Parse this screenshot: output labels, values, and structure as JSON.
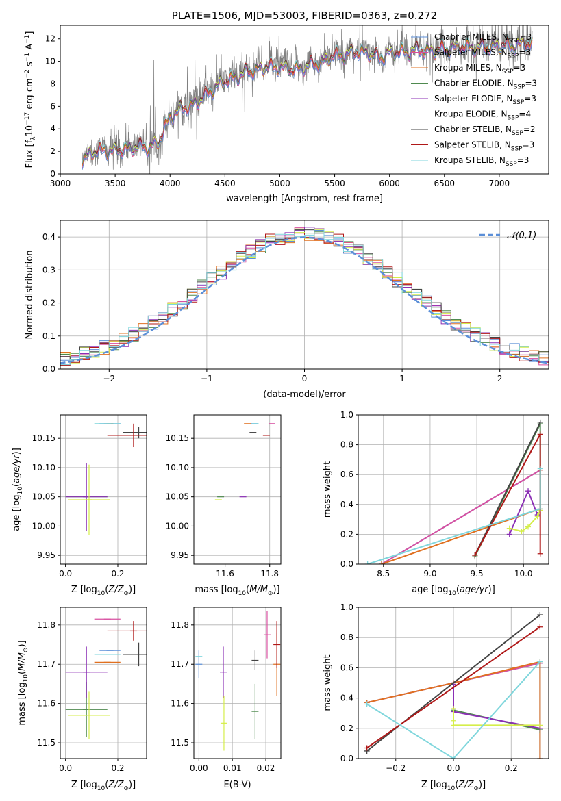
{
  "palette": {
    "Chabrier MILES": "#5b8fd8",
    "Salpeter MILES": "#d84fa0",
    "Kroupa MILES": "#e07020",
    "Chabrier ELODIE": "#4f8a4f",
    "Salpeter ELODIE": "#8b2fb5",
    "Kroupa ELODIE": "#d5ee4a",
    "Chabrier STELIB": "#444444",
    "Salpeter STELIB": "#b01818",
    "Kroupa STELIB": "#7fd6dc",
    "data": "#7f7f7f",
    "gaussian": "#5b8fd8"
  },
  "chart_data": [
    {
      "id": "spectrum",
      "type": "line",
      "title": "PLATE=1506, MJD=53003, FIBERID=0363, z=0.272",
      "xlabel": "wavelength [Angstrom, rest frame]",
      "ylabel": "Flux [f_λ 10^-17 erg cm^-2 s^-1 A^-1]",
      "xlim": [
        3000,
        7450
      ],
      "ylim": [
        0,
        13.2
      ],
      "xticks": [
        3000,
        3500,
        4000,
        4500,
        5000,
        5500,
        6000,
        6500,
        7000
      ],
      "yticks": [
        0,
        2,
        4,
        6,
        8,
        10,
        12
      ],
      "grid": false,
      "legend_position": "top-right",
      "legend": [
        "Chabrier MILES, N_SSP=3",
        "Salpeter MILES, N_SSP=3",
        "Kroupa MILES, N_SSP=3",
        "Chabrier ELODIE, N_SSP=3",
        "Salpeter ELODIE, N_SSP=3",
        "Kroupa ELODIE, N_SSP=4",
        "Chabrier STELIB, N_SSP=2",
        "Salpeter STELIB, N_SSP=3",
        "Kroupa STELIB, N_SSP=3"
      ],
      "wave_range": [
        3200,
        7300
      ],
      "continuum": {
        "x": [
          3200,
          3300,
          3400,
          3500,
          3600,
          3700,
          3800,
          3900,
          4000,
          4100,
          4200,
          4300,
          4400,
          4500,
          4600,
          4700,
          4800,
          4900,
          5000,
          5100,
          5200,
          5300,
          5400,
          5500,
          5600,
          5700,
          5800,
          5900,
          6000,
          6100,
          6200,
          6300,
          6400,
          6500,
          6600,
          6700,
          6800,
          6900,
          7000,
          7100,
          7200,
          7300
        ],
        "y": [
          1.5,
          2.1,
          2.3,
          2.2,
          2.4,
          2.6,
          2.6,
          3.0,
          5.3,
          5.9,
          6.3,
          6.9,
          7.8,
          8.4,
          8.8,
          9.2,
          9.5,
          9.7,
          9.7,
          9.4,
          9.6,
          9.9,
          10.2,
          10.7,
          10.8,
          11.0,
          11.0,
          10.5,
          10.9,
          11.0,
          11.1,
          11.2,
          11.1,
          11.3,
          11.4,
          11.5,
          11.4,
          11.5,
          11.6,
          11.6,
          11.7,
          11.8
        ]
      },
      "noise": {
        "x": [
          3200,
          4000,
          5000,
          6000,
          7000,
          7300
        ],
        "sigma": [
          0.6,
          0.8,
          0.7,
          0.6,
          0.8,
          0.9
        ]
      }
    },
    {
      "id": "residuals",
      "type": "line",
      "title": "",
      "xlabel": "(data-model)/error",
      "ylabel": "Normed distribution",
      "xlim": [
        -2.5,
        2.5
      ],
      "ylim": [
        0,
        0.45
      ],
      "xticks": [
        -2,
        -1,
        0,
        1,
        2
      ],
      "yticks": [
        0.0,
        0.1,
        0.2,
        0.3,
        0.4
      ],
      "grid": true,
      "legend_position": "top-right",
      "legend": [
        "N(0,1)"
      ],
      "gaussian": {
        "mu": 0,
        "sigma": 1
      },
      "bin_width": 0.1
    },
    {
      "id": "age-vs-z",
      "type": "errorbar",
      "xlabel": "Z [log10(Z/Z⊙)]",
      "ylabel": "age  [log10(age/yr)]",
      "xlim": [
        -0.02,
        0.31
      ],
      "ylim": [
        9.935,
        10.19
      ],
      "xticks": [
        0.0,
        0.2
      ],
      "yticks": [
        9.95,
        10.0,
        10.05,
        10.1,
        10.15
      ],
      "grid": true,
      "points": [
        {
          "series": "Chabrier MILES",
          "x": 0.17,
          "y": 10.175,
          "xerr": 0.04,
          "yerr": 0.0
        },
        {
          "series": "Salpeter MILES",
          "x": 0.16,
          "y": 10.175,
          "xerr": 0.0,
          "yerr": 0.0
        },
        {
          "series": "Kroupa MILES",
          "x": 0.17,
          "y": 10.175,
          "xerr": 0.0,
          "yerr": 0.0
        },
        {
          "series": "Chabrier ELODIE",
          "x": 0.08,
          "y": 10.05,
          "xerr": 0.08,
          "yerr": 0.0
        },
        {
          "series": "Salpeter ELODIE",
          "x": 0.08,
          "y": 10.05,
          "xerr": 0.08,
          "yerr": 0.058
        },
        {
          "series": "Kroupa ELODIE",
          "x": 0.09,
          "y": 10.045,
          "xerr": 0.08,
          "yerr": 0.06
        },
        {
          "series": "Chabrier STELIB",
          "x": 0.28,
          "y": 10.16,
          "xerr": 0.06,
          "yerr": 0.01
        },
        {
          "series": "Salpeter STELIB",
          "x": 0.26,
          "y": 10.155,
          "xerr": 0.1,
          "yerr": 0.02
        },
        {
          "series": "Kroupa STELIB",
          "x": 0.16,
          "y": 10.175,
          "xerr": 0.05,
          "yerr": 0.0
        }
      ]
    },
    {
      "id": "age-vs-mass",
      "type": "errorbar",
      "xlabel": "mass [log10(M/M⊙)]",
      "ylabel": "",
      "xlim": [
        11.46,
        11.85
      ],
      "ylim": [
        9.935,
        10.19
      ],
      "xticks": [
        11.6,
        11.8
      ],
      "yticks": [
        9.95,
        10.0,
        10.05,
        10.1,
        10.15
      ],
      "grid": true,
      "points": [
        {
          "series": "Chabrier MILES",
          "x": 11.73,
          "y": 10.175,
          "xerr": 0.0,
          "yerr": 0.0
        },
        {
          "series": "Salpeter MILES",
          "x": 11.81,
          "y": 10.175,
          "xerr": 0.0,
          "yerr": 0.0
        },
        {
          "series": "Kroupa MILES",
          "x": 11.7,
          "y": 10.175,
          "xerr": 0.0,
          "yerr": 0.0
        },
        {
          "series": "Chabrier ELODIE",
          "x": 11.58,
          "y": 10.05,
          "xerr": 0.0,
          "yerr": 0.0
        },
        {
          "series": "Salpeter ELODIE",
          "x": 11.68,
          "y": 10.05,
          "xerr": 0.0,
          "yerr": 0.0
        },
        {
          "series": "Kroupa ELODIE",
          "x": 11.57,
          "y": 10.045,
          "xerr": 0.0,
          "yerr": 0.0
        },
        {
          "series": "Chabrier STELIB",
          "x": 11.725,
          "y": 10.16,
          "xerr": 0.0,
          "yerr": 0.0
        },
        {
          "series": "Salpeter STELIB",
          "x": 11.785,
          "y": 10.155,
          "xerr": 0.0,
          "yerr": 0.0
        },
        {
          "series": "Kroupa STELIB",
          "x": 11.735,
          "y": 10.175,
          "xerr": 0.0,
          "yerr": 0.0
        }
      ]
    },
    {
      "id": "weight-vs-age",
      "type": "line",
      "xlabel": "age  [log10(age/yr)]",
      "ylabel": "mass weight",
      "xlim": [
        8.23,
        10.27
      ],
      "ylim": [
        0,
        1.0
      ],
      "xticks": [
        8.5,
        9.0,
        9.5,
        10.0
      ],
      "yticks": [
        0.0,
        0.2,
        0.4,
        0.6,
        0.8,
        1.0
      ],
      "grid": true,
      "series": [
        {
          "series": "Chabrier MILES",
          "x": [
            8.48,
            10.18
          ],
          "y": [
            0.0,
            0.63
          ]
        },
        {
          "series": "Salpeter MILES",
          "x": [
            8.48,
            10.18
          ],
          "y": [
            0.0,
            0.63
          ]
        },
        {
          "series": "Kroupa MILES",
          "x": [
            8.48,
            10.18,
            10.18
          ],
          "y": [
            0.0,
            0.37,
            0.63
          ]
        },
        {
          "series": "Chabrier ELODIE",
          "x": [
            9.48,
            10.18,
            10.18
          ],
          "y": [
            0.05,
            0.94,
            0.36
          ]
        },
        {
          "series": "Salpeter ELODIE",
          "x": [
            9.85,
            10.05,
            10.15
          ],
          "y": [
            0.2,
            0.49,
            0.33
          ]
        },
        {
          "series": "Kroupa ELODIE",
          "x": [
            9.85,
            9.98,
            10.05,
            10.15,
            10.18
          ],
          "y": [
            0.24,
            0.22,
            0.25,
            0.32,
            0.36
          ]
        },
        {
          "series": "Chabrier STELIB",
          "x": [
            9.48,
            10.18
          ],
          "y": [
            0.06,
            0.95
          ]
        },
        {
          "series": "Salpeter STELIB",
          "x": [
            9.48,
            10.18,
            10.18
          ],
          "y": [
            0.06,
            0.87,
            0.07
          ]
        },
        {
          "series": "Kroupa STELIB",
          "x": [
            8.33,
            10.18,
            10.18
          ],
          "y": [
            0.0,
            0.37,
            0.64
          ]
        }
      ]
    },
    {
      "id": "mass-vs-z",
      "type": "errorbar",
      "xlabel": "Z [log10(Z/Z⊙)]",
      "ylabel": "mass [log10(M/M⊙)]",
      "xlim": [
        -0.02,
        0.31
      ],
      "ylim": [
        11.46,
        11.845
      ],
      "xticks": [
        0.0,
        0.2
      ],
      "yticks": [
        11.5,
        11.6,
        11.7,
        11.8
      ],
      "grid": true,
      "points": [
        {
          "series": "Chabrier MILES",
          "x": 0.17,
          "y": 11.735,
          "xerr": 0.04,
          "yerr": 0.0
        },
        {
          "series": "Salpeter MILES",
          "x": 0.16,
          "y": 11.815,
          "xerr": 0.05,
          "yerr": 0.0
        },
        {
          "series": "Kroupa MILES",
          "x": 0.16,
          "y": 11.705,
          "xerr": 0.05,
          "yerr": 0.0
        },
        {
          "series": "Chabrier ELODIE",
          "x": 0.08,
          "y": 11.585,
          "xerr": 0.08,
          "yerr": 0.07
        },
        {
          "series": "Salpeter ELODIE",
          "x": 0.08,
          "y": 11.68,
          "xerr": 0.08,
          "yerr": 0.065
        },
        {
          "series": "Kroupa ELODIE",
          "x": 0.09,
          "y": 11.57,
          "xerr": 0.08,
          "yerr": 0.06
        },
        {
          "series": "Chabrier STELIB",
          "x": 0.28,
          "y": 11.725,
          "xerr": 0.06,
          "yerr": 0.03
        },
        {
          "series": "Salpeter STELIB",
          "x": 0.26,
          "y": 11.785,
          "xerr": 0.1,
          "yerr": 0.025
        },
        {
          "series": "Kroupa STELIB",
          "x": 0.16,
          "y": 11.725,
          "xerr": 0.05,
          "yerr": 0.0
        }
      ]
    },
    {
      "id": "mass-vs-ebv",
      "type": "errorbar",
      "xlabel": "E(B-V)",
      "ylabel": "",
      "xlim": [
        -0.0015,
        0.0245
      ],
      "ylim": [
        11.46,
        11.845
      ],
      "xticks": [
        0.0,
        0.01,
        0.02
      ],
      "yticks": [
        11.5,
        11.6,
        11.7,
        11.8
      ],
      "grid": true,
      "points": [
        {
          "series": "Chabrier MILES",
          "x": 0.0,
          "y": 11.7,
          "xerr": 0.0,
          "yerr": 0.035
        },
        {
          "series": "Salpeter MILES",
          "x": 0.0204,
          "y": 11.775,
          "xerr": 0.0,
          "yerr": 0.06
        },
        {
          "series": "Kroupa MILES",
          "x": 0.0233,
          "y": 11.7,
          "xerr": 0.0,
          "yerr": 0.08
        },
        {
          "series": "Chabrier ELODIE",
          "x": 0.0168,
          "y": 11.58,
          "xerr": 0.0,
          "yerr": 0.07
        },
        {
          "series": "Salpeter ELODIE",
          "x": 0.0073,
          "y": 11.68,
          "xerr": 0.0,
          "yerr": 0.065
        },
        {
          "series": "Kroupa ELODIE",
          "x": 0.0075,
          "y": 11.55,
          "xerr": 0.0,
          "yerr": 0.07
        },
        {
          "series": "Chabrier STELIB",
          "x": 0.0168,
          "y": 11.71,
          "xerr": 0.0,
          "yerr": 0.025
        },
        {
          "series": "Salpeter STELIB",
          "x": 0.0233,
          "y": 11.75,
          "xerr": 0.0,
          "yerr": 0.06
        },
        {
          "series": "Kroupa STELIB",
          "x": 0.0,
          "y": 11.72,
          "xerr": 0.0,
          "yerr": 0.0
        }
      ]
    },
    {
      "id": "weight-vs-z",
      "type": "line",
      "xlabel": "Z [log10(Z/Z⊙)]",
      "ylabel": "mass weight",
      "xlim": [
        -0.33,
        0.33
      ],
      "ylim": [
        0,
        1.0
      ],
      "xticks": [
        -0.2,
        0.0,
        0.2
      ],
      "yticks": [
        0.0,
        0.2,
        0.4,
        0.6,
        0.8,
        1.0
      ],
      "grid": true,
      "series": [
        {
          "series": "Chabrier MILES",
          "x": [
            -0.3,
            0.0,
            0.3,
            0.3
          ],
          "y": [
            0.37,
            0.5,
            0.63,
            0.0
          ]
        },
        {
          "series": "Salpeter MILES",
          "x": [
            -0.3,
            0.0,
            0.3
          ],
          "y": [
            0.37,
            0.5,
            0.63
          ]
        },
        {
          "series": "Kroupa MILES",
          "x": [
            -0.3,
            0.0,
            0.3,
            0.3
          ],
          "y": [
            0.37,
            0.5,
            0.64,
            0.0
          ]
        },
        {
          "series": "Chabrier ELODIE",
          "x": [
            0.0,
            0.3
          ],
          "y": [
            0.32,
            0.19
          ]
        },
        {
          "series": "Salpeter ELODIE",
          "x": [
            0.0,
            0.0,
            0.3
          ],
          "y": [
            0.49,
            0.31,
            0.2
          ]
        },
        {
          "series": "Kroupa ELODIE",
          "x": [
            0.0,
            0.0,
            0.0,
            0.3
          ],
          "y": [
            0.33,
            0.25,
            0.22,
            0.22
          ]
        },
        {
          "series": "Chabrier STELIB",
          "x": [
            -0.3,
            0.3
          ],
          "y": [
            0.05,
            0.95
          ]
        },
        {
          "series": "Salpeter STELIB",
          "x": [
            -0.3,
            0.3
          ],
          "y": [
            0.07,
            0.87
          ]
        },
        {
          "series": "Kroupa STELIB",
          "x": [
            -0.3,
            0.0,
            0.3
          ],
          "y": [
            0.36,
            0.0,
            0.64
          ]
        }
      ]
    }
  ]
}
